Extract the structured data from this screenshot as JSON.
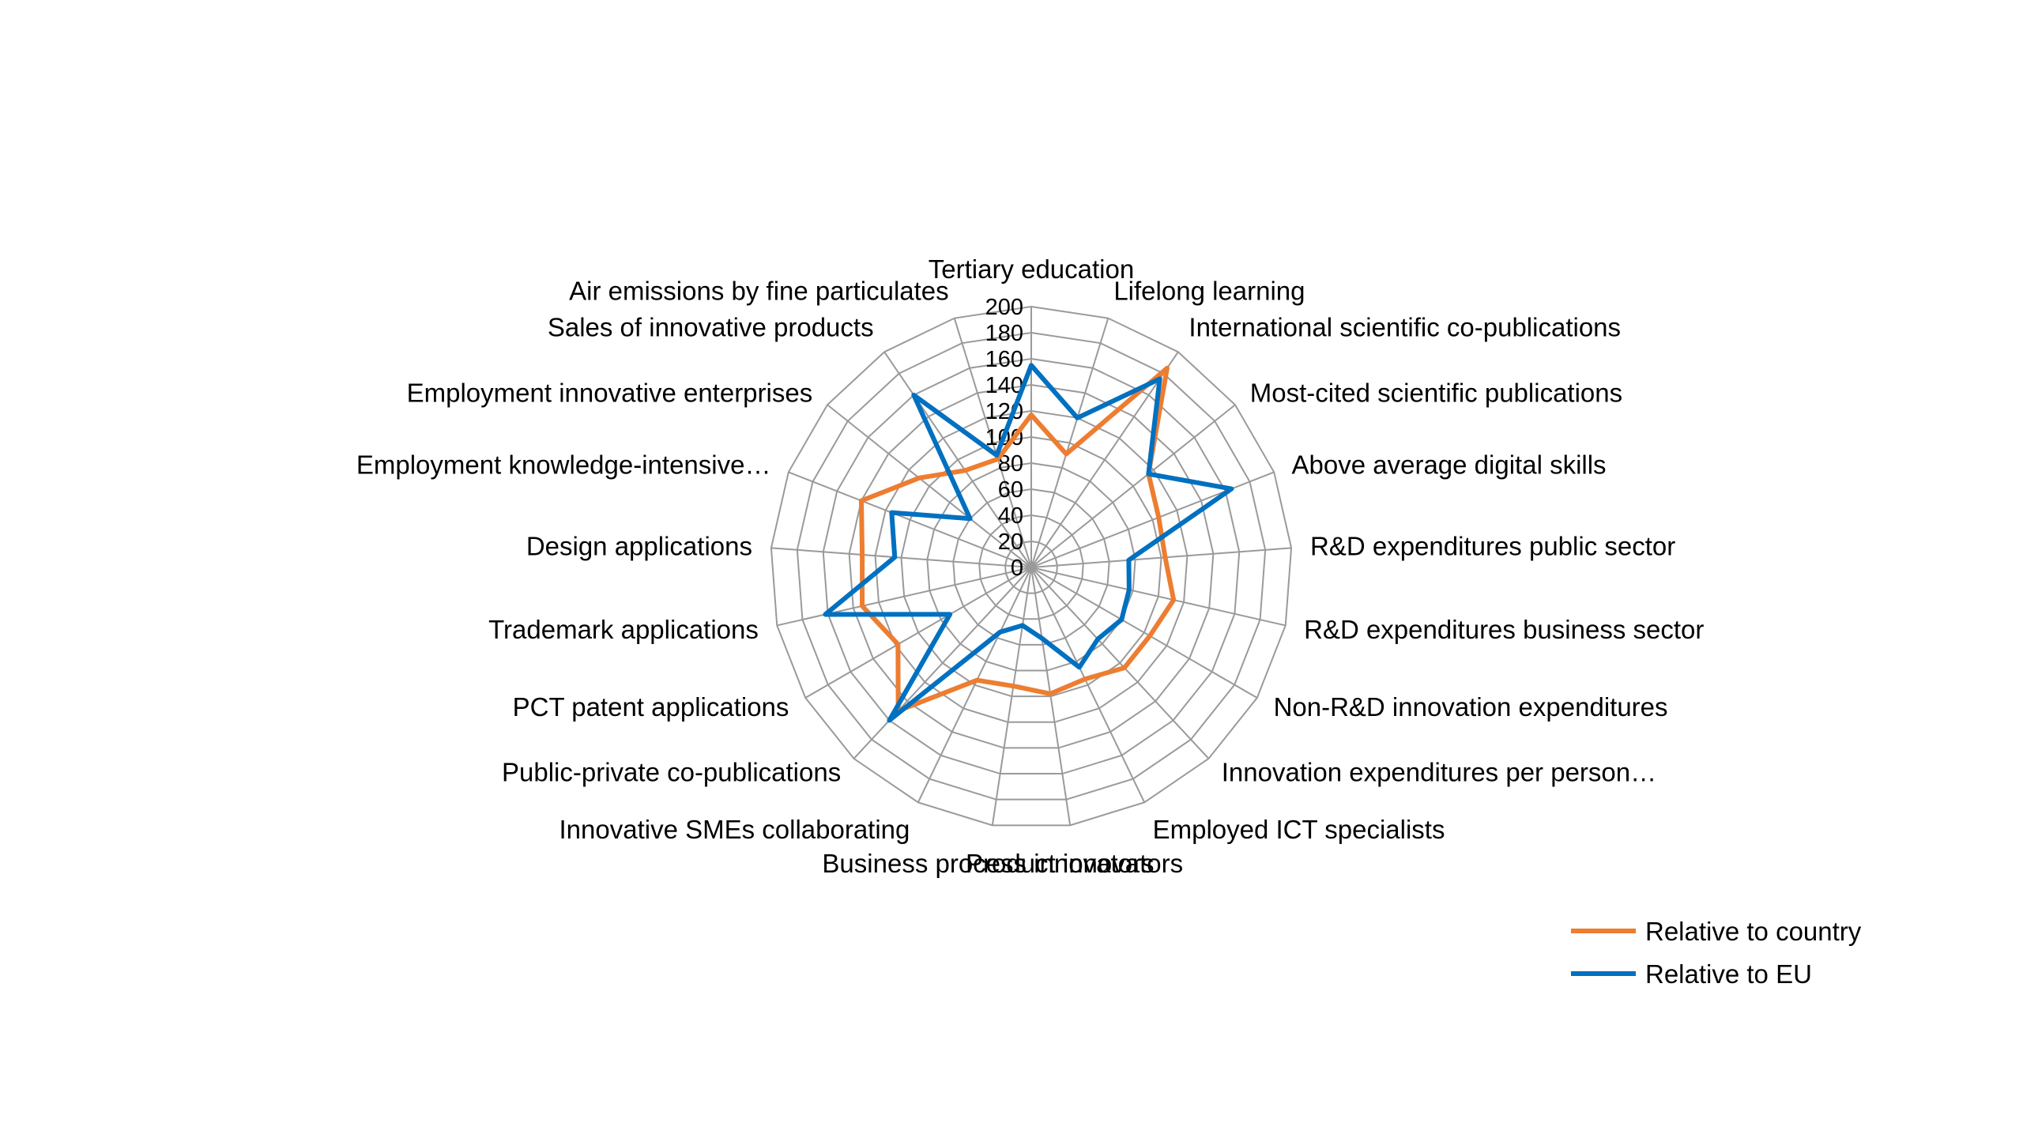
{
  "chart_data": {
    "type": "radar",
    "title": "",
    "rlim": [
      0,
      200
    ],
    "ticks": [
      0,
      20,
      40,
      60,
      80,
      100,
      120,
      140,
      160,
      180,
      200
    ],
    "grid": true,
    "legend_position": "bottom-right",
    "categories": [
      "Tertiary education",
      "Lifelong learning",
      "International scientific co-publications",
      "Most-cited scientific publications",
      "Above average digital skills",
      "R&D expenditures public sector",
      "R&D expenditures business sector",
      "Non-R&D innovation expenditures",
      "Innovation expenditures per person…",
      "Employed ICT specialists",
      "Product innovators",
      "Business process innovators",
      "Innovative SMEs collaborating",
      "Public-private co-publications",
      "PCT patent applications",
      "Trademark applications",
      "Design applications",
      "Employment knowledge-intensive…",
      "Employment innovative enterprises",
      "Sales of innovative products",
      "Air emissions by fine particulates"
    ],
    "series": [
      {
        "name": "Relative to country",
        "color": "#ED7D31",
        "values": [
          117,
          91,
          185,
          115,
          105,
          103,
          112,
          105,
          105,
          95,
          98,
          92,
          96,
          150,
          118,
          133,
          130,
          140,
          110,
          90,
          87
        ]
      },
      {
        "name": "Relative to EU",
        "color": "#0070C0",
        "values": [
          155,
          120,
          175,
          115,
          165,
          75,
          77,
          80,
          75,
          85,
          55,
          45,
          55,
          160,
          72,
          162,
          105,
          115,
          60,
          160,
          90
        ]
      }
    ]
  },
  "legend": {
    "items": [
      {
        "label": "Relative to country",
        "color": "#ED7D31"
      },
      {
        "label": "Relative to EU",
        "color": "#0070C0"
      }
    ]
  }
}
